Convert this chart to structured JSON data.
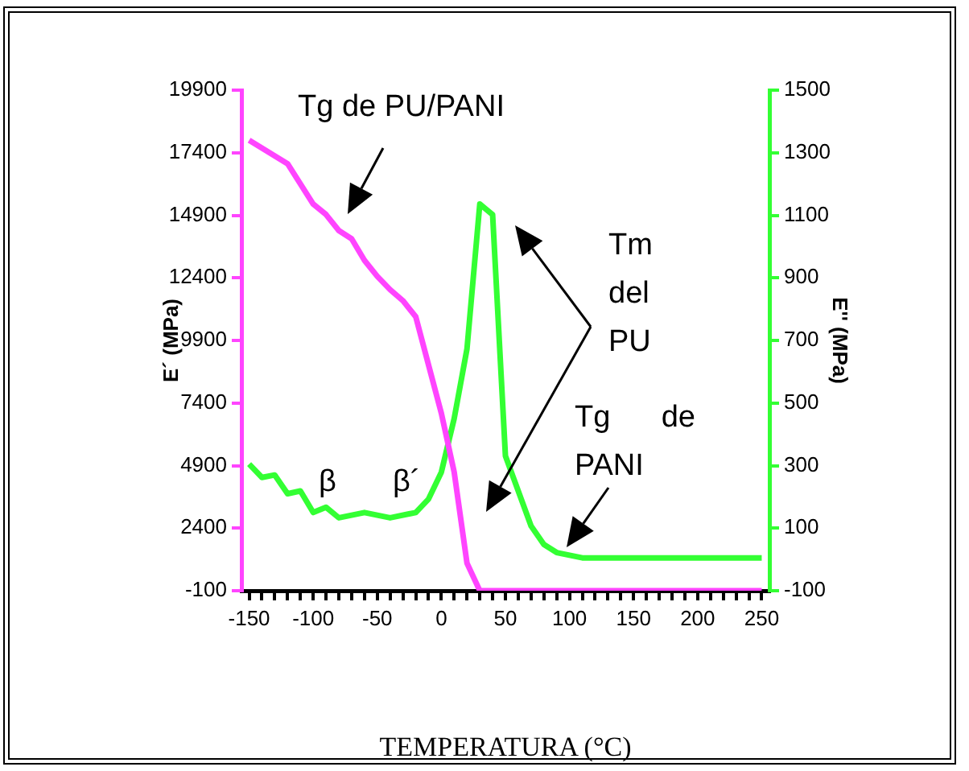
{
  "chart_data": {
    "type": "line",
    "xlabel": "TEMPERATURA (°C)",
    "ylabel": "E´ (MPa)",
    "y2label": "E'' (MPa)",
    "xlim": [
      -156,
      256
    ],
    "xticks": [
      -150,
      {
        "value": -140,
        "label": null
      },
      {
        "value": -130,
        "label": null
      },
      {
        "value": -120,
        "label": null
      },
      {
        "value": -110,
        "label": null
      },
      -100,
      {
        "value": -90,
        "label": null
      },
      {
        "value": -80,
        "label": null
      },
      {
        "value": -70,
        "label": null
      },
      {
        "value": -60,
        "label": null
      },
      -50,
      {
        "value": -40,
        "label": null
      },
      {
        "value": -30,
        "label": null
      },
      {
        "value": -20,
        "label": null
      },
      {
        "value": -10,
        "label": null
      },
      0,
      {
        "value": 10,
        "label": null
      },
      {
        "value": 20,
        "label": null
      },
      {
        "value": 30,
        "label": null
      },
      {
        "value": 40,
        "label": null
      },
      50,
      {
        "value": 60,
        "label": null
      },
      {
        "value": 70,
        "label": null
      },
      {
        "value": 80,
        "label": null
      },
      {
        "value": 90,
        "label": null
      },
      100,
      {
        "value": 110,
        "label": null
      },
      {
        "value": 120,
        "label": null
      },
      {
        "value": 130,
        "label": null
      },
      {
        "value": 140,
        "label": null
      },
      150,
      {
        "value": 160,
        "label": null
      },
      {
        "value": 170,
        "label": null
      },
      {
        "value": 180,
        "label": null
      },
      {
        "value": 190,
        "label": null
      },
      200,
      {
        "value": 210,
        "label": null
      },
      {
        "value": 220,
        "label": null
      },
      {
        "value": 230,
        "label": null
      },
      {
        "value": 240,
        "label": null
      },
      250
    ],
    "ylim": [
      -100,
      19900
    ],
    "yticks": [
      -100,
      2400,
      4900,
      7400,
      9900,
      12400,
      14900,
      17400,
      19900
    ],
    "y2lim": [
      -100,
      1500
    ],
    "y2ticks": [
      -100,
      100,
      300,
      500,
      700,
      900,
      1100,
      1300,
      1500
    ],
    "grid": false,
    "legend": false,
    "marker": "none",
    "line_style": "solid",
    "series": [
      {
        "color": "#ff44ff",
        "x": [
          -150,
          -120,
          -100,
          -90,
          -80,
          -70,
          -60,
          -50,
          -40,
          -30,
          -20,
          -10,
          0,
          10,
          20,
          30,
          250
        ],
        "values": [
          17900,
          16960,
          15350,
          14930,
          14290,
          13960,
          13100,
          12460,
          11930,
          11490,
          10850,
          8920,
          6990,
          4640,
          1000,
          -100,
          -100
        ]
      },
      {
        "color": "#33ff33",
        "axis": "y2",
        "x": [
          -150,
          -140,
          -130,
          -120,
          -110,
          -100,
          -90,
          -80,
          -60,
          -40,
          -20,
          -10,
          0,
          10,
          20,
          30,
          40,
          50,
          70,
          80,
          90,
          110,
          250
        ],
        "values": [
          305,
          262,
          270,
          210,
          219,
          150,
          167,
          133,
          150,
          133,
          150,
          193,
          279,
          450,
          673,
          1136,
          1102,
          331,
          107,
          48,
          22,
          5,
          5
        ]
      }
    ],
    "annotations": [
      "Tg de PU/PANI",
      "β",
      "β´",
      "Tm\ndel\nPU",
      "Tg      de\nPANI"
    ]
  }
}
